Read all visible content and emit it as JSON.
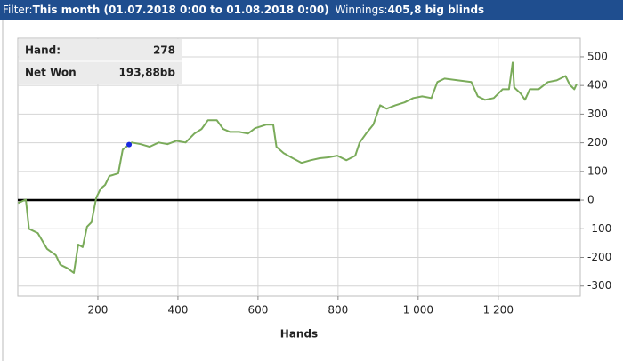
{
  "header": {
    "filter_label": "Filter:",
    "filter": "This month (01.07.2018 0:00 to 01.08.2018 0:00)",
    "winnings_label": "Winnings:",
    "winnings": "405,8 big blinds"
  },
  "chart_data": {
    "type": "line",
    "x_label": "Hands",
    "x": [
      1,
      20,
      28,
      50,
      73,
      95,
      106,
      124,
      140,
      151,
      162,
      173,
      184,
      196,
      207,
      218,
      229,
      251,
      262,
      278,
      285,
      307,
      329,
      352,
      374,
      396,
      419,
      441,
      459,
      475,
      497,
      513,
      530,
      553,
      575,
      593,
      620,
      638,
      646,
      664,
      687,
      709,
      731,
      754,
      776,
      798,
      821,
      843,
      854,
      870,
      888,
      905,
      921,
      943,
      966,
      988,
      1010,
      1033,
      1048,
      1066,
      1100,
      1133,
      1149,
      1167,
      1189,
      1211,
      1227,
      1236,
      1240,
      1256,
      1267,
      1279,
      1301,
      1324,
      1346,
      1368,
      1379,
      1390,
      1396
    ],
    "series": [
      {
        "name": "Net Won",
        "color": "#7aab5a",
        "values": [
          -10,
          2,
          -100,
          -115,
          -170,
          -192,
          -225,
          -238,
          -254,
          -155,
          -164,
          -93,
          -77,
          9,
          40,
          53,
          84,
          93,
          176,
          193.88,
          201,
          195,
          186,
          201,
          195,
          207,
          201,
          232,
          248,
          279,
          279,
          248,
          238,
          238,
          232,
          251,
          263,
          263,
          186,
          164,
          146,
          130,
          139,
          146,
          149,
          155,
          139,
          155,
          201,
          232,
          263,
          331,
          319,
          331,
          341,
          356,
          362,
          356,
          412,
          424,
          418,
          412,
          362,
          350,
          356,
          387,
          387,
          480,
          393,
          372,
          350,
          387,
          387,
          412,
          418,
          433,
          402,
          387,
          405.8
        ]
      }
    ],
    "xlim": [
      0,
      1405
    ],
    "ylim": [
      -335,
      565
    ],
    "xticks": [
      200,
      400,
      600,
      800,
      {
        "value": 1000,
        "label": "1 000"
      },
      {
        "value": 1200,
        "label": "1 200"
      }
    ],
    "yticks": [
      -300,
      -200,
      -100,
      0,
      100,
      200,
      300,
      400,
      500
    ],
    "grid": true,
    "zero_line": true,
    "y_axis_side": "right",
    "highlight": {
      "x": 278,
      "value": 193.88,
      "label": "193,88bb",
      "color": "#1a2be0"
    },
    "highlight_labels": [
      "Hand:",
      "Net Won"
    ]
  }
}
